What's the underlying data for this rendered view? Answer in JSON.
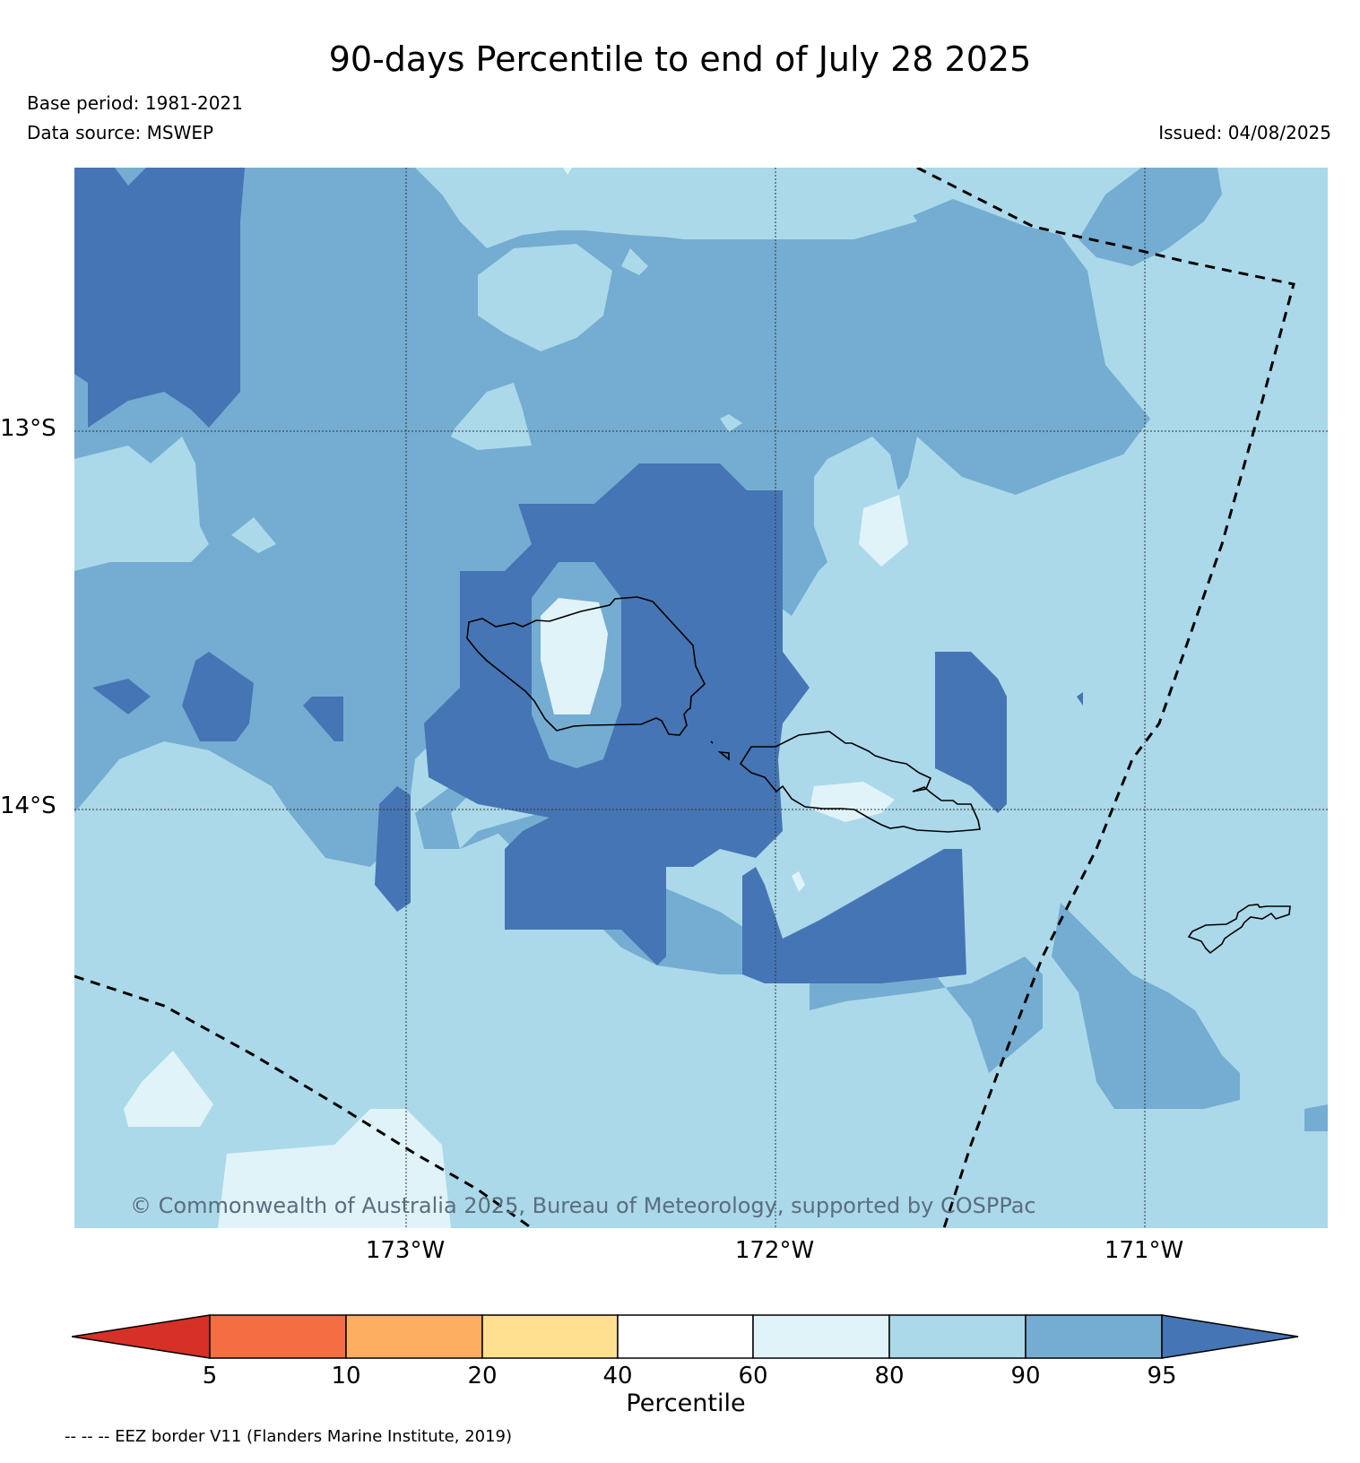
{
  "title": "90-days Percentile to end of July 28 2025",
  "base_period": "Base period: 1981-2021",
  "data_source": "Data source: MSWEP",
  "issued": "Issued: 04/08/2025",
  "copyright": "© Commonwealth of Australia 2025, Bureau of Meteorology, supported by COSPPac",
  "axes": {
    "lat_labels": [
      "13°S",
      "14°S"
    ],
    "lon_labels": [
      "173°W",
      "172°W",
      "171°W"
    ]
  },
  "colorbar": {
    "label": "Percentile",
    "ticks": [
      "5",
      "10",
      "20",
      "40",
      "60",
      "80",
      "90",
      "95"
    ],
    "colors": {
      "below_5": "#d73027",
      "5_10": "#f46d43",
      "10_20": "#fdae61",
      "20_40": "#fee090",
      "40_60": "#ffffff",
      "60_80": "#e0f3f8",
      "80_90": "#abd9e9",
      "90_95": "#74add1",
      "above_95": "#4575b4"
    }
  },
  "eez_note": "-- -- -- EEZ border V11 (Flanders Marine Institute, 2019)"
}
